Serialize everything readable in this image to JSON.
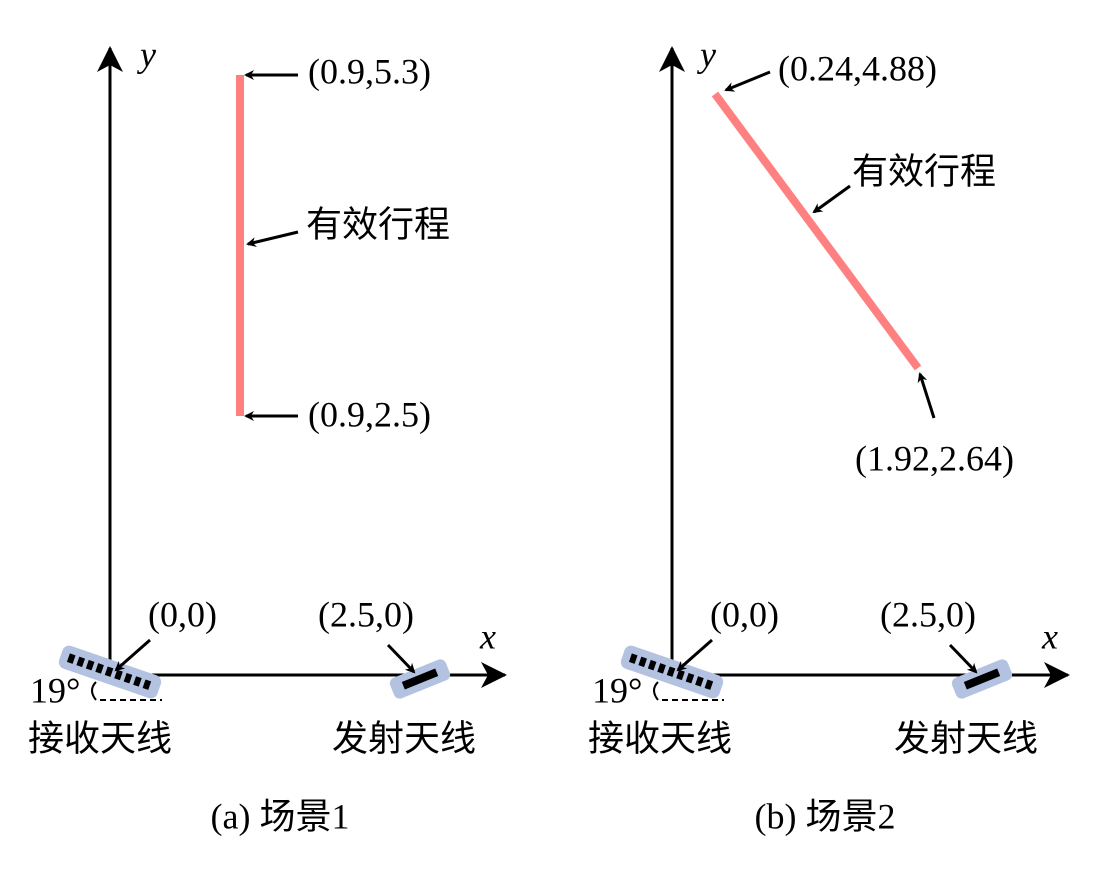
{
  "panels": [
    {
      "y_axis": "y",
      "x_axis": "x",
      "start_label": "(0.9,5.3)",
      "path_label": "有效行程",
      "end_label": "(0.9,2.5)",
      "origin_label": "(0,0)",
      "transmitter_label": "(2.5,0)",
      "angle_label": "19°",
      "receiver_name": "接收天线",
      "transmitter_name": "发射天线",
      "caption": "(a) 场景1"
    },
    {
      "y_axis": "y",
      "x_axis": "x",
      "start_label": "(0.24,4.88)",
      "path_label": "有效行程",
      "end_label": "(1.92,2.64)",
      "origin_label": "(0,0)",
      "transmitter_label": "(2.5,0)",
      "angle_label": "19°",
      "receiver_name": "接收天线",
      "transmitter_name": "发射天线",
      "caption": "(b) 场景2"
    }
  ]
}
